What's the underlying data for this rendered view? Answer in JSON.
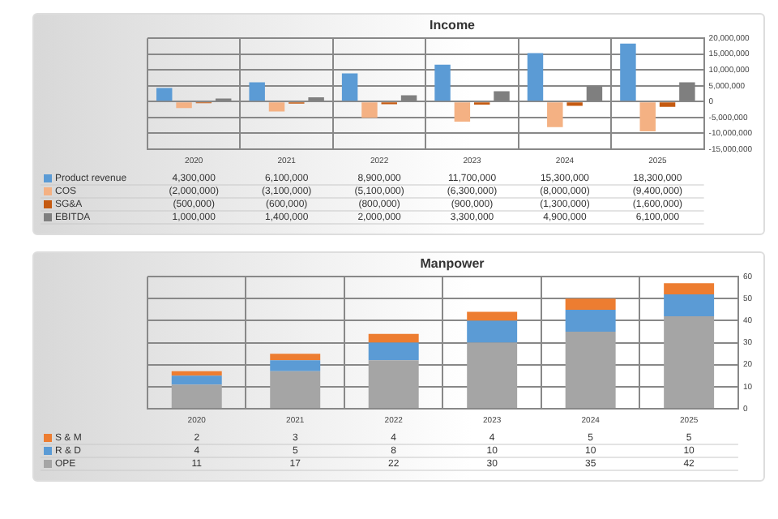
{
  "chart_data": [
    {
      "type": "bar",
      "title": "Income",
      "categories": [
        "2020",
        "2021",
        "2022",
        "2023",
        "2024",
        "2025"
      ],
      "series": [
        {
          "name": "Product revenue",
          "color": "#5b9bd5",
          "values": [
            4300000,
            6100000,
            8900000,
            11700000,
            15300000,
            18300000
          ],
          "value_labels": [
            "4,300,000",
            "6,100,000",
            "8,900,000",
            "11,700,000",
            "15,300,000",
            "18,300,000"
          ]
        },
        {
          "name": "COS",
          "color": "#f4b183",
          "values": [
            -2000000,
            -3100000,
            -5100000,
            -6300000,
            -8000000,
            -9400000
          ],
          "value_labels": [
            "(2,000,000)",
            "(3,100,000)",
            "(5,100,000)",
            "(6,300,000)",
            "(8,000,000)",
            "(9,400,000)"
          ]
        },
        {
          "name": "SG&A",
          "color": "#c55a11",
          "values": [
            -500000,
            -600000,
            -800000,
            -900000,
            -1300000,
            -1600000
          ],
          "value_labels": [
            "(500,000)",
            "(600,000)",
            "(800,000)",
            "(900,000)",
            "(1,300,000)",
            "(1,600,000)"
          ]
        },
        {
          "name": "EBITDA",
          "color": "#7f7f7f",
          "values": [
            1000000,
            1400000,
            2000000,
            3300000,
            4900000,
            6100000
          ],
          "value_labels": [
            "1,000,000",
            "1,400,000",
            "2,000,000",
            "3,300,000",
            "4,900,000",
            "6,100,000"
          ]
        }
      ],
      "ylim": [
        -15000000,
        20000000
      ],
      "yticks": [
        {
          "value": -15000000,
          "label": "-15,000,000"
        },
        {
          "value": -10000000,
          "label": "-10,000,000"
        },
        {
          "value": -5000000,
          "label": "-5,000,000"
        },
        0,
        {
          "value": 5000000,
          "label": "5,000,000"
        },
        {
          "value": 10000000,
          "label": "10,000,000"
        },
        {
          "value": 15000000,
          "label": "15,000,000"
        },
        {
          "value": 20000000,
          "label": "20,000,000"
        }
      ],
      "grid": true,
      "legend": "bottom"
    },
    {
      "type": "bar",
      "title": "Manpower",
      "categories": [
        "2020",
        "2021",
        "2022",
        "2023",
        "2024",
        "2025"
      ],
      "stacked": true,
      "series": [
        {
          "name": "OPE",
          "color": "#a5a5a5",
          "values": [
            11,
            17,
            22,
            30,
            35,
            42
          ]
        },
        {
          "name": "R & D",
          "color": "#5b9bd5",
          "values": [
            4,
            5,
            8,
            10,
            10,
            10
          ]
        },
        {
          "name": "S & M",
          "color": "#ed7d31",
          "values": [
            2,
            3,
            4,
            4,
            5,
            5
          ]
        }
      ],
      "ylim": [
        0,
        60
      ],
      "yticks": [
        0,
        10,
        20,
        30,
        40,
        50,
        60
      ],
      "grid": true,
      "legend": "bottom",
      "data_labels": true
    }
  ]
}
